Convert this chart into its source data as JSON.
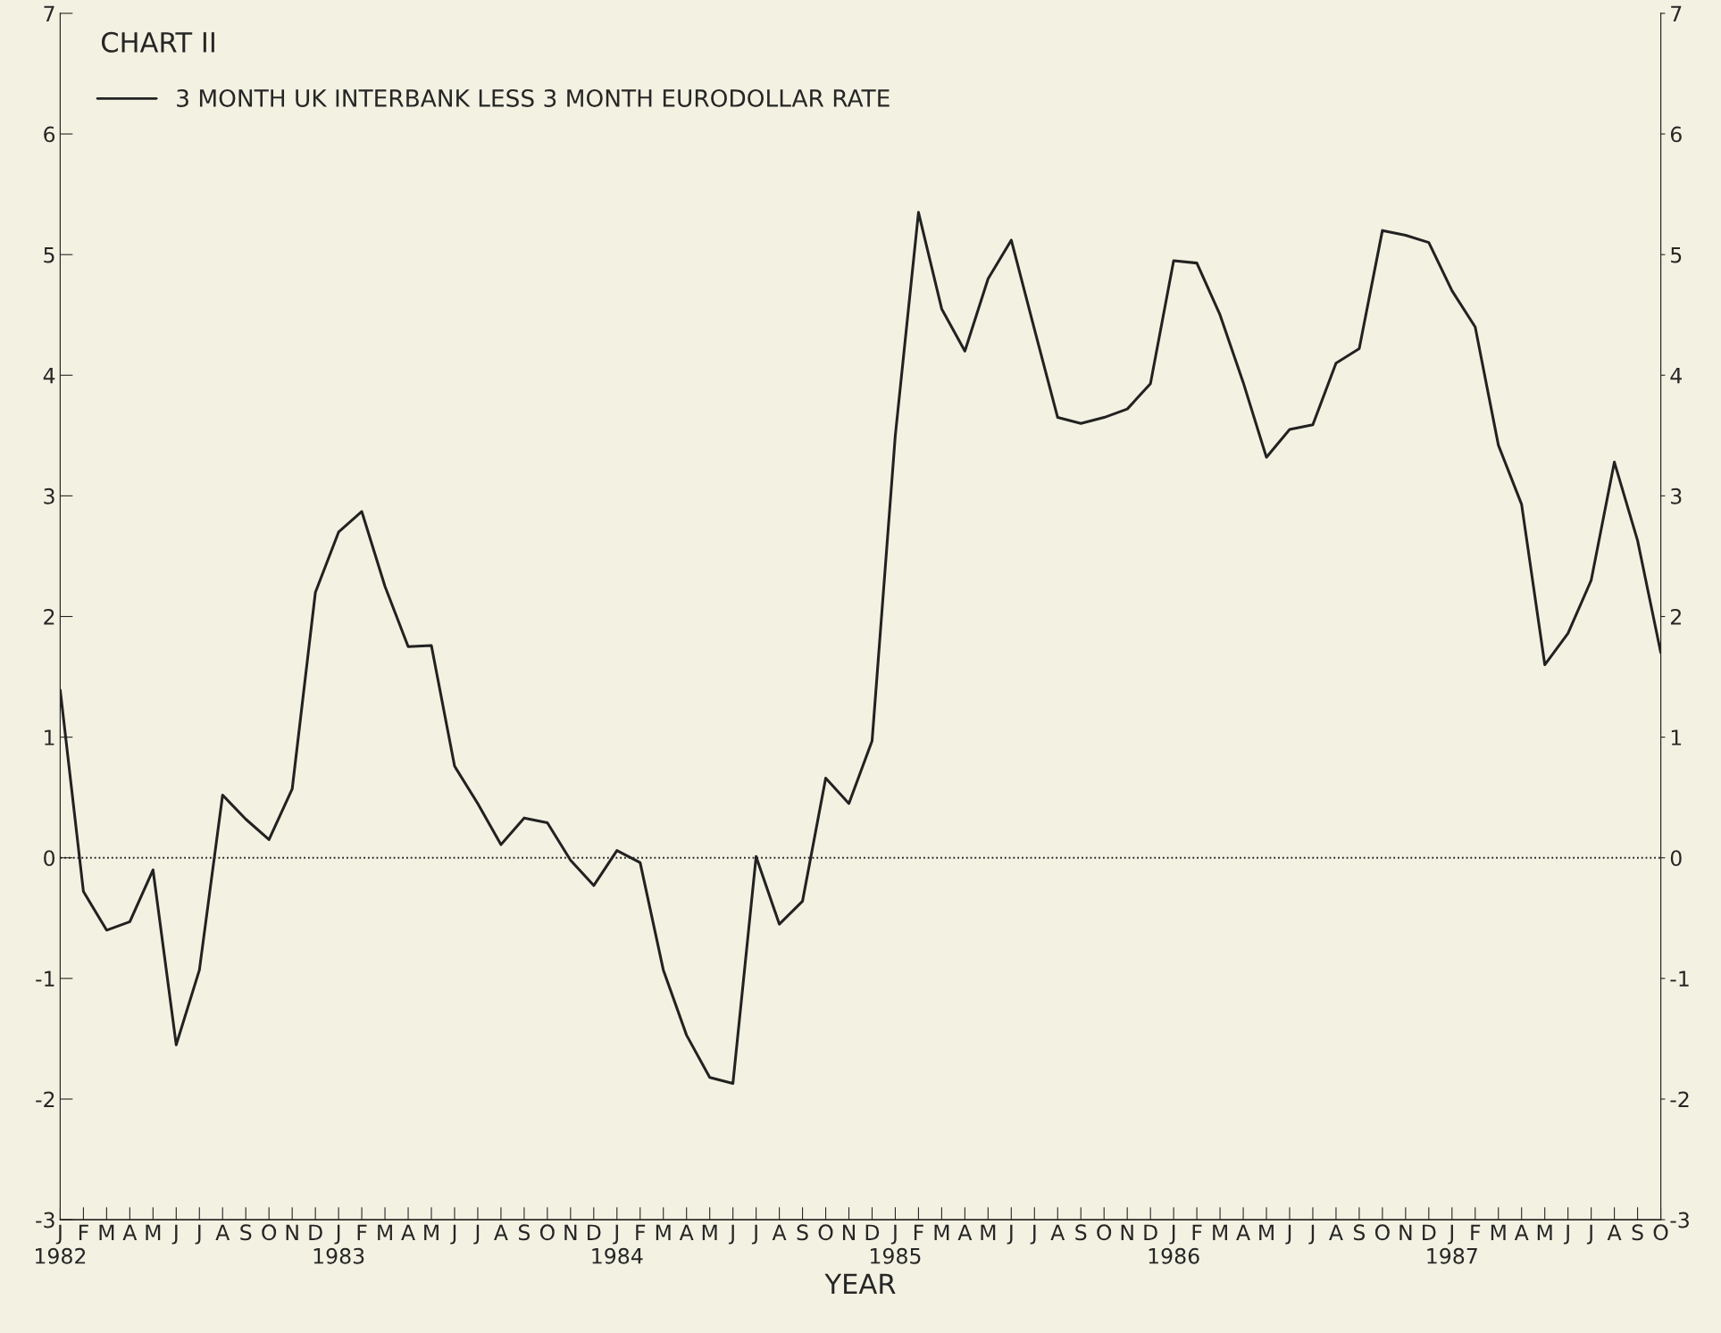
{
  "chart_data": {
    "type": "line",
    "title": "CHART II",
    "xlabel": "YEAR",
    "categories": [
      "J\n1982",
      "F",
      "M",
      "A",
      "M",
      "J",
      "J",
      "A",
      "S",
      "O",
      "N",
      "D",
      "J\n1983",
      "F",
      "M",
      "A",
      "M",
      "J",
      "J",
      "A",
      "S",
      "O",
      "N",
      "D",
      "J\n1984",
      "F",
      "M",
      "A",
      "M",
      "J",
      "J",
      "A",
      "S",
      "O",
      "N",
      "D",
      "J\n1985",
      "F",
      "M",
      "A",
      "M",
      "J",
      "J",
      "A",
      "S",
      "O",
      "N",
      "D",
      "J\n1986",
      "F",
      "M",
      "A",
      "M",
      "J",
      "J",
      "A",
      "S",
      "O",
      "N",
      "D",
      "J\n1987",
      "F",
      "M",
      "A",
      "M",
      "J",
      "J",
      "A",
      "S",
      "O"
    ],
    "series": [
      {
        "name": "3 MONTH UK INTERBANK LESS 3 MONTH EURODOLLAR RATE",
        "color": "#222222",
        "values": [
          1.39,
          -0.28,
          -0.6,
          -0.53,
          -0.1,
          -1.55,
          -0.93,
          0.52,
          0.32,
          0.15,
          0.57,
          2.2,
          2.7,
          2.87,
          2.25,
          1.75,
          1.76,
          0.76,
          0.45,
          0.11,
          0.33,
          0.29,
          -0.02,
          -0.23,
          0.06,
          -0.04,
          -0.93,
          -1.47,
          -1.82,
          -1.87,
          0.01,
          -0.55,
          -0.36,
          0.66,
          0.45,
          0.97,
          3.5,
          5.35,
          4.55,
          4.2,
          4.8,
          5.12,
          4.38,
          3.65,
          3.6,
          3.65,
          3.72,
          3.93,
          4.95,
          4.93,
          4.5,
          3.94,
          3.32,
          3.55,
          3.59,
          4.1,
          4.22,
          5.2,
          5.16,
          5.1,
          4.7,
          4.4,
          3.42,
          2.93,
          1.6,
          1.86,
          2.3,
          3.28,
          2.63,
          1.7
        ]
      }
    ],
    "ylim": [
      -3,
      7
    ],
    "yticks": [
      -3,
      -2,
      -1,
      0,
      1,
      2,
      3,
      4,
      5,
      6,
      7
    ],
    "y2lim": [
      -3,
      7
    ],
    "y2ticks": [
      -3,
      -2,
      -1,
      0,
      1,
      2,
      3,
      4,
      5,
      6,
      7
    ],
    "ref_lines": [
      {
        "axis": "y",
        "value": 0,
        "line_style": "dotted",
        "color": "#222222"
      }
    ],
    "legend": "top left",
    "grid": false,
    "marker": "none",
    "line_style": "solid"
  }
}
